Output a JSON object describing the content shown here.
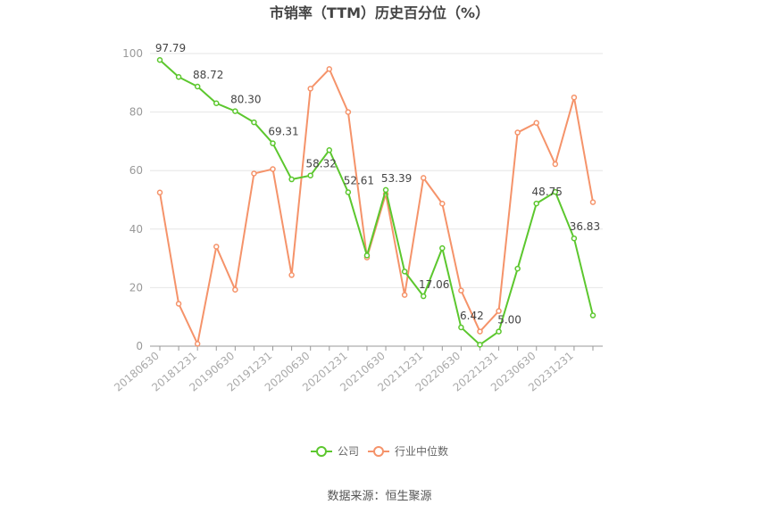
{
  "chart_data": {
    "type": "line",
    "title": "市销率（TTM）历史百分位（%）",
    "ylim": [
      0,
      100
    ],
    "yticks": [
      0,
      20,
      40,
      60,
      80,
      100
    ],
    "x": [
      "20180630",
      "20180930",
      "20181231",
      "20190331",
      "20190630",
      "20190930",
      "20191231",
      "20200331",
      "20200630",
      "20200930",
      "20201231",
      "20210331",
      "20210630",
      "20210930",
      "20211231",
      "20220331",
      "20220630",
      "20220930",
      "20221231",
      "20230331",
      "20230630",
      "20230930",
      "20231231",
      "20240331"
    ],
    "x_tick_labels": [
      "20180630",
      "20181231",
      "20190630",
      "20191231",
      "20200630",
      "20201231",
      "20210630",
      "20211231",
      "20220630",
      "20221231",
      "20230630",
      "20231231"
    ],
    "series": [
      {
        "name": "公司",
        "color": "#5cc72e",
        "values": [
          97.79,
          92.0,
          88.72,
          83.0,
          80.3,
          76.5,
          69.31,
          57.0,
          58.32,
          67.0,
          52.61,
          31.0,
          53.39,
          25.5,
          17.06,
          33.5,
          6.42,
          0.5,
          5.0,
          26.5,
          48.75,
          52.7,
          36.83,
          10.5
        ],
        "labels": {
          "0": "97.79",
          "2": "88.72",
          "4": "80.30",
          "6": "69.31",
          "8": "58.32",
          "10": "52.61",
          "12": "53.39",
          "14": "17.06",
          "16": "6.42",
          "18": "5.00",
          "20": "48.75",
          "22": "36.83"
        }
      },
      {
        "name": "行业中位数",
        "color": "#f5936a",
        "values": [
          52.5,
          14.5,
          0.8,
          34.0,
          19.3,
          59.0,
          60.5,
          24.3,
          88.0,
          94.7,
          80.0,
          30.3,
          52.0,
          17.5,
          57.5,
          48.7,
          19.0,
          5.0,
          12.0,
          73.0,
          76.3,
          62.2,
          85.0,
          49.2
        ]
      }
    ],
    "legend_position": "bottom-center",
    "grid": true
  },
  "footer": {
    "source": "数据来源：恒生聚源"
  }
}
